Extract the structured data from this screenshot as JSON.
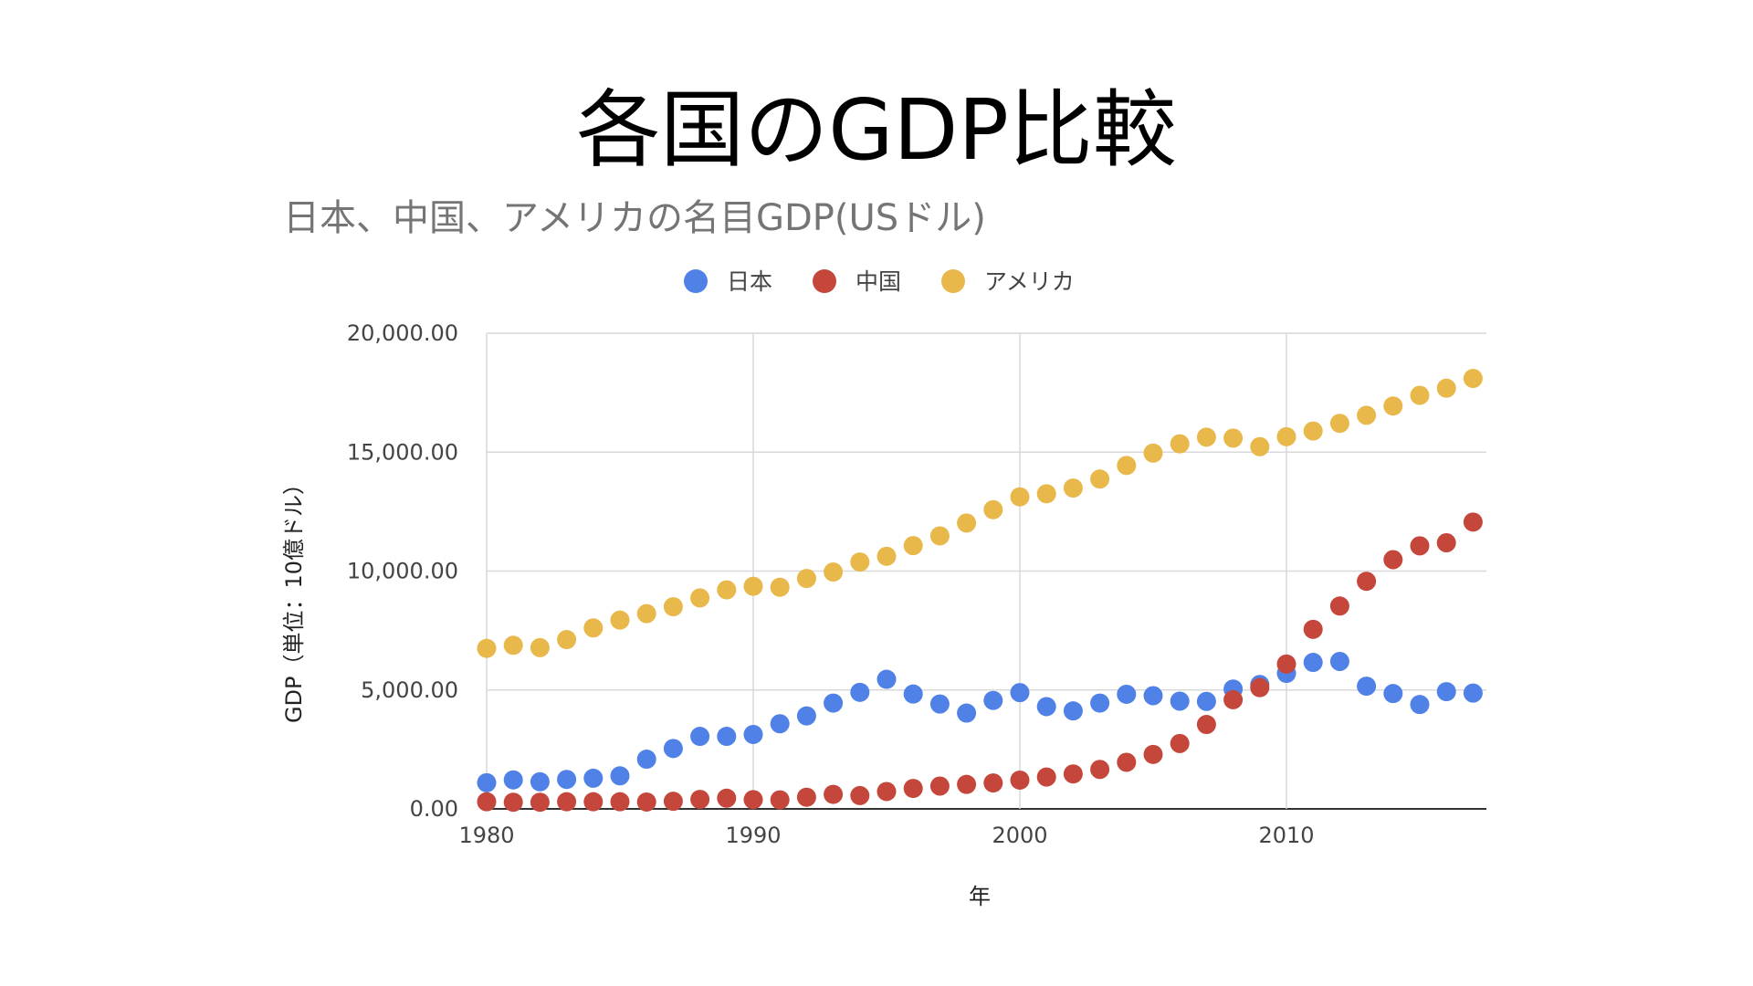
{
  "slide": {
    "title": "各国のGDP比較"
  },
  "chart_data": {
    "type": "scatter",
    "title": "日本、中国、アメリカの名目GDP(USドル)",
    "xlabel": "年",
    "ylabel": "GDP（単位：10億ドル）",
    "xlim": [
      1980,
      2017
    ],
    "ylim": [
      0,
      20000
    ],
    "x_ticks": [
      1980,
      1990,
      2000,
      2010
    ],
    "y_ticks": [
      "0.00",
      "5,000.00",
      "10,000.00",
      "15,000.00",
      "20,000.00"
    ],
    "y_tick_values": [
      0,
      5000,
      10000,
      15000,
      20000
    ],
    "grid": true,
    "legend_position": "top",
    "x": [
      1980,
      1981,
      1982,
      1983,
      1984,
      1985,
      1986,
      1987,
      1988,
      1989,
      1990,
      1991,
      1992,
      1993,
      1994,
      1995,
      1996,
      1997,
      1998,
      1999,
      2000,
      2001,
      2002,
      2003,
      2004,
      2005,
      2006,
      2007,
      2008,
      2009,
      2010,
      2011,
      2012,
      2013,
      2014,
      2015,
      2016,
      2017
    ],
    "series": [
      {
        "name": "日本",
        "color": "#4f81e6",
        "values": [
          1100,
          1220,
          1140,
          1240,
          1290,
          1390,
          2090,
          2540,
          3050,
          3050,
          3130,
          3580,
          3910,
          4450,
          4900,
          5450,
          4830,
          4410,
          4030,
          4560,
          4890,
          4300,
          4120,
          4450,
          4820,
          4760,
          4530,
          4520,
          5040,
          5230,
          5700,
          6160,
          6200,
          5160,
          4850,
          4390,
          4930,
          4870
        ]
      },
      {
        "name": "中国",
        "color": "#c5463a",
        "values": [
          300,
          280,
          280,
          300,
          300,
          300,
          290,
          320,
          400,
          450,
          390,
          380,
          490,
          610,
          560,
          730,
          860,
          960,
          1030,
          1090,
          1210,
          1340,
          1470,
          1660,
          1960,
          2290,
          2750,
          3550,
          4590,
          5100,
          6090,
          7550,
          8530,
          9570,
          10480,
          11060,
          11190,
          12060
        ]
      },
      {
        "name": "アメリカ",
        "color": "#e8b84b",
        "values": [
          6750,
          6880,
          6780,
          7120,
          7610,
          7940,
          8210,
          8500,
          8870,
          9210,
          9360,
          9320,
          9690,
          9960,
          10380,
          10620,
          11070,
          11480,
          12020,
          12580,
          13120,
          13250,
          13490,
          13870,
          14440,
          14960,
          15350,
          15630,
          15590,
          15230,
          15650,
          15890,
          16210,
          16550,
          16940,
          17390,
          17690,
          18100
        ]
      }
    ]
  }
}
